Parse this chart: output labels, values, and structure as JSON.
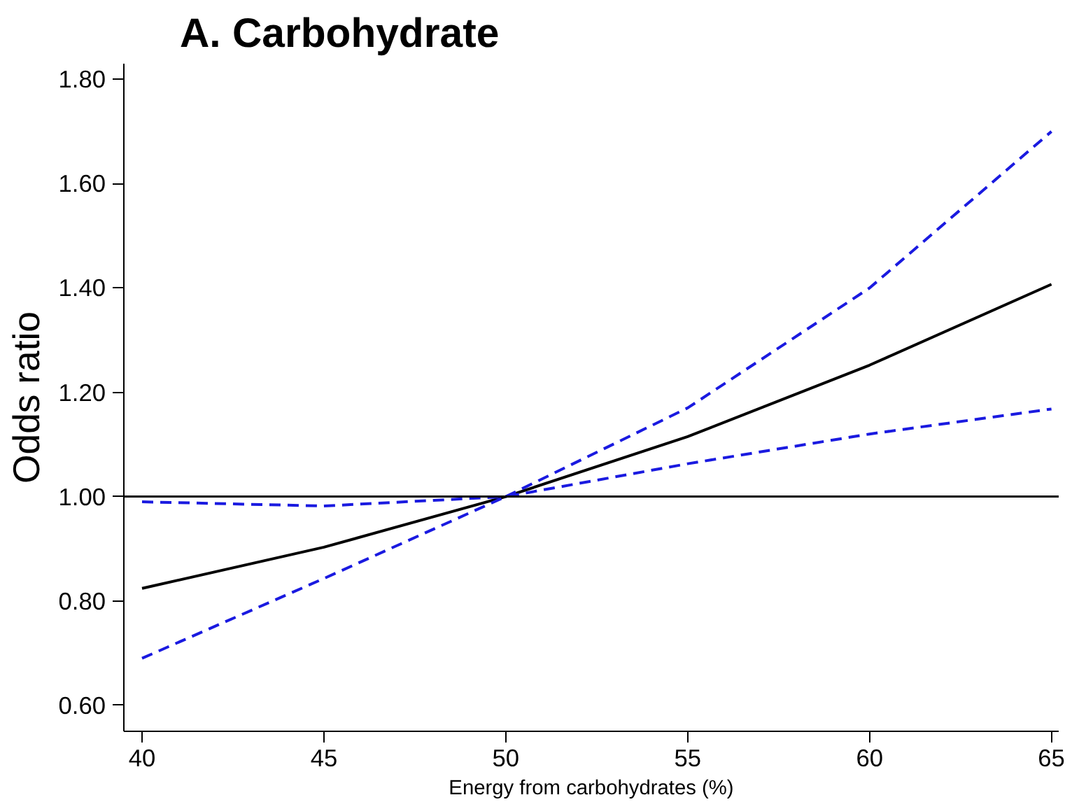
{
  "chart_data": {
    "type": "line",
    "title": "A. Carbohydrate",
    "xlabel": "Energy from carbohydrates (%)",
    "ylabel": "Odds ratio",
    "x": [
      40,
      45,
      50,
      55,
      60,
      65
    ],
    "series": [
      {
        "color": "#000000",
        "line_style": "solid",
        "values": [
          0.824,
          0.903,
          1.0,
          1.115,
          1.252,
          1.407
        ]
      },
      {
        "color": "#1a1ae0",
        "line_style": "dashed",
        "values": [
          0.99,
          0.982,
          1.0,
          1.17,
          1.4,
          1.7
        ]
      },
      {
        "color": "#1a1ae0",
        "line_style": "dashed",
        "values": [
          0.69,
          0.843,
          1.0,
          1.063,
          1.12,
          1.168
        ]
      }
    ],
    "ref_lines": [
      {
        "axis": "y",
        "value": 1.0,
        "color": "#000000",
        "line_style": "solid"
      }
    ],
    "xlim": [
      39.5,
      65.2
    ],
    "ylim": [
      0.55,
      1.83
    ],
    "xticks": [
      40,
      45,
      50,
      55,
      60,
      65
    ],
    "yticks": [
      {
        "value": 0.6,
        "label": "0.60"
      },
      {
        "value": 0.8,
        "label": "0.80"
      },
      {
        "value": 1.0,
        "label": "1.00"
      },
      {
        "value": 1.2,
        "label": "1.20"
      },
      {
        "value": 1.4,
        "label": "1.40"
      },
      {
        "value": 1.6,
        "label": "1.60"
      },
      {
        "value": 1.8,
        "label": "1.80"
      }
    ],
    "grid": false,
    "marker": "none"
  }
}
